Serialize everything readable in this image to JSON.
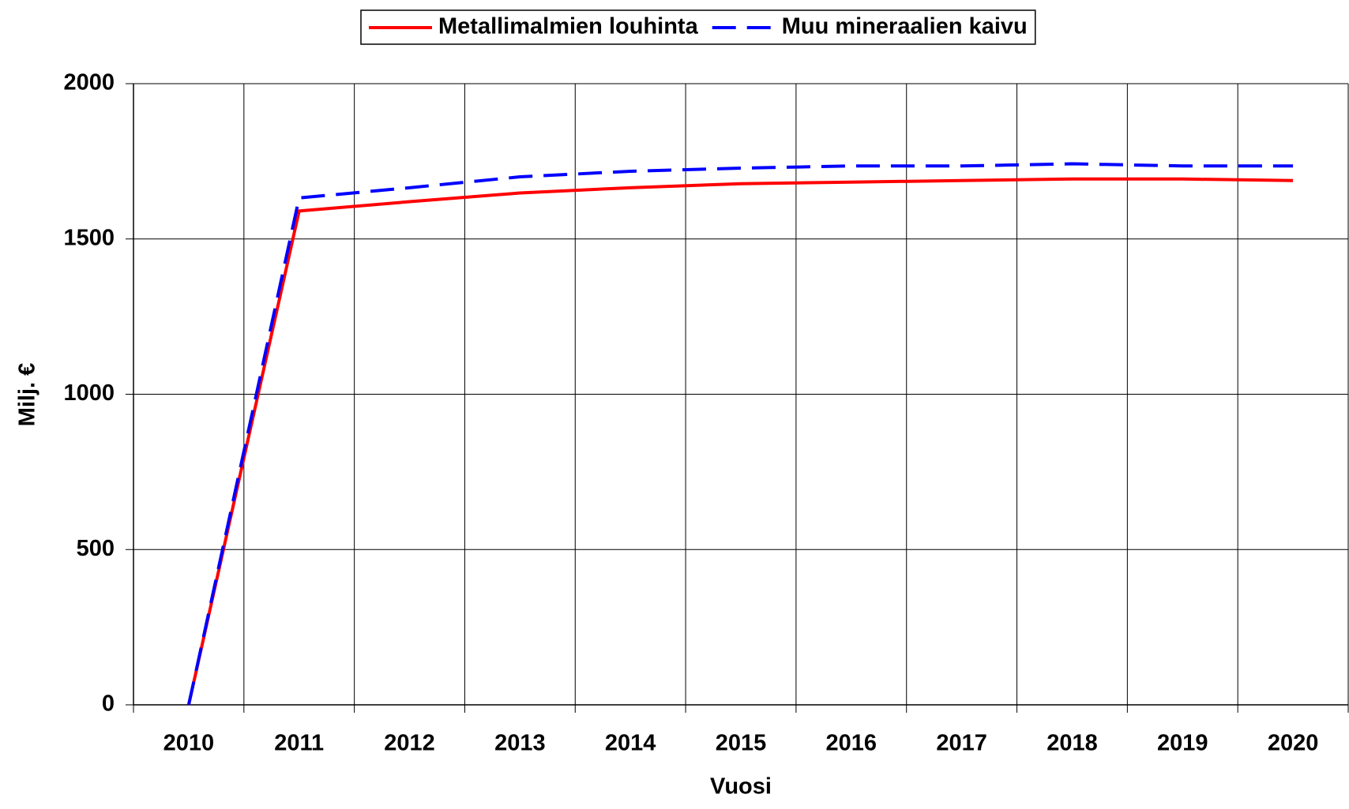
{
  "chart_data": {
    "type": "line",
    "x_label": "Vuosi",
    "y_label": "Milj. €",
    "categories": [
      "2010",
      "2011",
      "2012",
      "2013",
      "2014",
      "2015",
      "2016",
      "2017",
      "2018",
      "2019",
      "2020"
    ],
    "series": [
      {
        "name": "Metallimalmien louhinta",
        "color": "#ff0000",
        "dashed": false,
        "values": [
          0,
          1590,
          1620,
          1648,
          1665,
          1678,
          1683,
          1688,
          1693,
          1693,
          1688
        ]
      },
      {
        "name": "Muu mineraalien kaivu",
        "color": "#0000ff",
        "dashed": true,
        "values": [
          0,
          1632,
          1665,
          1700,
          1718,
          1728,
          1735,
          1735,
          1742,
          1735,
          1735
        ]
      }
    ],
    "ylim": [
      0,
      2000
    ],
    "yticks": [
      0,
      500,
      1000,
      1500,
      2000
    ],
    "grid": true,
    "legend": "top"
  }
}
